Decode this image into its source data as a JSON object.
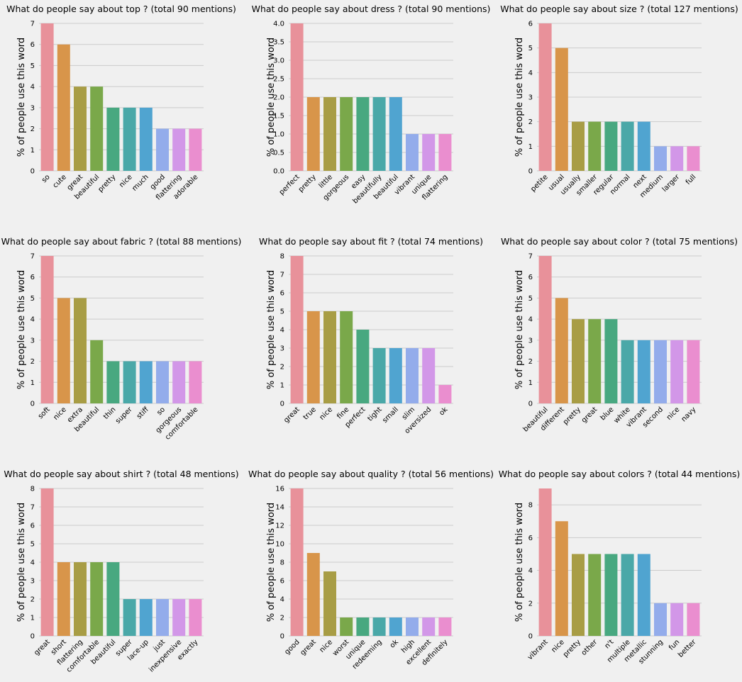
{
  "palette": [
    "#e8919a",
    "#d8954a",
    "#a89d45",
    "#7aa84a",
    "#48a880",
    "#4aa8a8",
    "#50a4d0",
    "#93aceb",
    "#d297e8",
    "#ea8ecf"
  ],
  "chart_data": [
    {
      "type": "bar",
      "title": "What do people say about top ? (total 90 mentions)",
      "ylabel": "% of people use this word",
      "categories": [
        "so",
        "cute",
        "great",
        "beautiful",
        "pretty",
        "nice",
        "much",
        "good",
        "flattering",
        "adorable"
      ],
      "values": [
        7,
        6,
        4,
        4,
        3,
        3,
        3,
        2,
        2,
        2
      ],
      "ylim": [
        0,
        7
      ],
      "yticks": [
        0,
        1,
        2,
        3,
        4,
        5,
        6,
        7
      ],
      "grid": true
    },
    {
      "type": "bar",
      "title": "What do people say about dress ? (total 90 mentions)",
      "ylabel": "% of people use this word",
      "categories": [
        "perfect",
        "pretty",
        "little",
        "gorgeous",
        "easy",
        "beautifully",
        "beautiful",
        "vibrant",
        "unique",
        "flattering"
      ],
      "values": [
        4,
        2,
        2,
        2,
        2,
        2,
        2,
        1,
        1,
        1
      ],
      "ylim": [
        0,
        4
      ],
      "yticks": [
        "0.0",
        "0.5",
        "1.0",
        "1.5",
        "2.0",
        "2.5",
        "3.0",
        "3.5",
        "4.0"
      ],
      "grid": true
    },
    {
      "type": "bar",
      "title": "What do people say about size ? (total 127 mentions)",
      "ylabel": "% of people use this word",
      "categories": [
        "petite",
        "usual",
        "usually",
        "smaller",
        "regular",
        "normal",
        "next",
        "medium",
        "larger",
        "full"
      ],
      "values": [
        6,
        5,
        2,
        2,
        2,
        2,
        2,
        1,
        1,
        1
      ],
      "ylim": [
        0,
        6
      ],
      "yticks": [
        0,
        1,
        2,
        3,
        4,
        5,
        6
      ],
      "grid": true
    },
    {
      "type": "bar",
      "title": "What do people say about fabric ? (total 88 mentions)",
      "ylabel": "% of people use this word",
      "categories": [
        "soft",
        "nice",
        "extra",
        "beautiful",
        "thin",
        "super",
        "stiff",
        "so",
        "gorgeous",
        "comfortable"
      ],
      "values": [
        7,
        5,
        5,
        3,
        2,
        2,
        2,
        2,
        2,
        2
      ],
      "ylim": [
        0,
        7
      ],
      "yticks": [
        0,
        1,
        2,
        3,
        4,
        5,
        6,
        7
      ],
      "grid": true
    },
    {
      "type": "bar",
      "title": "What do people say about fit ? (total 74 mentions)",
      "ylabel": "% of people use this word",
      "categories": [
        "great",
        "true",
        "nice",
        "fine",
        "perfect",
        "tight",
        "small",
        "slim",
        "oversized",
        "ok"
      ],
      "values": [
        8,
        5,
        5,
        5,
        4,
        3,
        3,
        3,
        3,
        1
      ],
      "ylim": [
        0,
        8
      ],
      "yticks": [
        0,
        1,
        2,
        3,
        4,
        5,
        6,
        7,
        8
      ],
      "grid": true
    },
    {
      "type": "bar",
      "title": "What do people say about color ? (total 75 mentions)",
      "ylabel": "% of people use this word",
      "categories": [
        "beautiful",
        "different",
        "pretty",
        "great",
        "blue",
        "white",
        "vibrant",
        "second",
        "nice",
        "navy"
      ],
      "values": [
        7,
        5,
        4,
        4,
        4,
        3,
        3,
        3,
        3,
        3
      ],
      "ylim": [
        0,
        7
      ],
      "yticks": [
        0,
        1,
        2,
        3,
        4,
        5,
        6,
        7
      ],
      "grid": true
    },
    {
      "type": "bar",
      "title": "What do people say about shirt ? (total 48 mentions)",
      "ylabel": "% of people use this word",
      "categories": [
        "great",
        "short",
        "flattering",
        "comfortable",
        "beautiful",
        "super",
        "lace-up",
        "just",
        "inexpensive",
        "exactly"
      ],
      "values": [
        8,
        4,
        4,
        4,
        4,
        2,
        2,
        2,
        2,
        2
      ],
      "ylim": [
        0,
        8
      ],
      "yticks": [
        0,
        1,
        2,
        3,
        4,
        5,
        6,
        7,
        8
      ],
      "grid": true
    },
    {
      "type": "bar",
      "title": "What do people say about quality ? (total 56 mentions)",
      "ylabel": "% of people use this word",
      "categories": [
        "good",
        "great",
        "nice",
        "worst",
        "unique",
        "redeeming",
        "ok",
        "high",
        "excellent",
        "definitely"
      ],
      "values": [
        16,
        9,
        7,
        2,
        2,
        2,
        2,
        2,
        2,
        2
      ],
      "ylim": [
        0,
        16
      ],
      "yticks": [
        0,
        2,
        4,
        6,
        8,
        10,
        12,
        14,
        16
      ],
      "grid": true
    },
    {
      "type": "bar",
      "title": "What do people say about colors ? (total 44 mentions)",
      "ylabel": "% of people use this word",
      "categories": [
        "vibrant",
        "nice",
        "pretty",
        "other",
        "n't",
        "multiple",
        "metallic",
        "stunning",
        "fun",
        "better"
      ],
      "values": [
        9,
        7,
        5,
        5,
        5,
        5,
        5,
        2,
        2,
        2
      ],
      "ylim": [
        0,
        9
      ],
      "yticks": [
        0,
        2,
        4,
        6,
        8
      ],
      "grid": true
    }
  ]
}
